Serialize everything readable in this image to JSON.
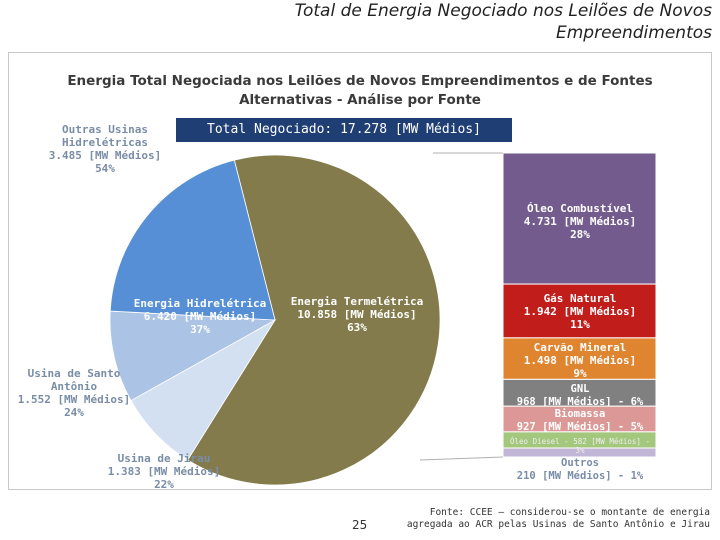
{
  "slide": {
    "title_line1": "Total de Energia Negociado nos Leilões de Novos",
    "title_line2": "Empreendimentos",
    "page_number": "25",
    "source_line1": "Fonte: CCEE – considerou-se o montante de energia",
    "source_line2": "agregada ao ACR pelas Usinas de Santo Antônio e Jirau"
  },
  "chart_data": {
    "type": "pie",
    "title_line1": "Energia Total Negociada nos Leilões de Novos Empreendimentos e de Fontes",
    "title_line2": "Alternativas - Análise por Fonte",
    "total_label": "Total Negociado: 17.278 [MW Médios]",
    "unit": "MW Médios",
    "pie": {
      "slices": [
        {
          "key": "termeletrica",
          "value": 10858,
          "color": "#837b4b",
          "label": [
            "Energia Termelétrica",
            "10.858 [MW Médios]",
            "63%"
          ]
        },
        {
          "key": "jirau",
          "value": 1383,
          "color": "#d3e0f2",
          "label": [
            "Usina de Jirau",
            "1.383 [MW Médios]",
            "22%"
          ]
        },
        {
          "key": "santo_antonio",
          "value": 1552,
          "color": "#abc3e4",
          "label": [
            "Usina de Santo",
            "Antônio",
            "1.552 [MW Médios]",
            "24%"
          ]
        },
        {
          "key": "outras_hidreletricas",
          "value": 3485,
          "color": "#568fd6",
          "label": [
            "Outras Usinas",
            "Hidrelétricas",
            "3.485 [MW Médios]",
            "54%"
          ]
        }
      ],
      "group_label": [
        "Energia Hidrelétrica",
        "6.420 [MW Médios]",
        "37%"
      ]
    },
    "breakdown_bar": {
      "segments": [
        {
          "key": "oleo_combustivel",
          "value": 4731,
          "color": "#735b8e",
          "label": [
            "Óleo Combustível",
            "4.731 [MW  Médios]",
            "28%"
          ]
        },
        {
          "key": "gas_natural",
          "value": 1942,
          "color": "#c01d1b",
          "label": [
            "Gás Natural",
            "1.942 [MW Médios]",
            "11%"
          ]
        },
        {
          "key": "carvao_mineral",
          "value": 1498,
          "color": "#df8530",
          "label": [
            "Carvão Mineral",
            "1.498 [MW Médios]",
            "9%"
          ]
        },
        {
          "key": "gnl",
          "value": 968,
          "color": "#808080",
          "label": [
            "GNL",
            "968 [MW Médios] - 6%"
          ]
        },
        {
          "key": "biomassa",
          "value": 927,
          "color": "#db9896",
          "label": [
            "Biomassa",
            "927 [MW Médios] - 5%"
          ]
        },
        {
          "key": "oleo_diesel",
          "value": 582,
          "color": "#a3c87d",
          "label": [
            "Óleo Diesel - 582 [MW Médios] - 3%"
          ]
        },
        {
          "key": "outros",
          "value": 210,
          "color": "#c2b6d6",
          "label": [
            "Outros",
            "210 [MW Médios] - 1%"
          ]
        }
      ]
    }
  }
}
